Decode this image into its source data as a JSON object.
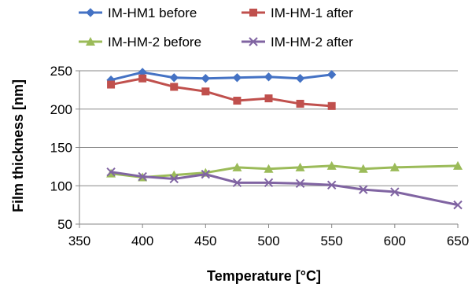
{
  "chart_data": {
    "type": "line",
    "title": "",
    "xlabel": "Temperature [°C]",
    "ylabel": "Film thickness [nm]",
    "xlim": [
      350,
      650
    ],
    "ylim": [
      50,
      250
    ],
    "xticks": [
      350,
      400,
      450,
      500,
      550,
      600,
      650
    ],
    "yticks": [
      50,
      100,
      150,
      200,
      250
    ],
    "grid": "horizontal",
    "legend_position": "top",
    "series": [
      {
        "name": "IM-HM1 before",
        "color": "#4472C4",
        "marker": "diamond",
        "x": [
          375,
          400,
          425,
          450,
          475,
          500,
          525,
          550
        ],
        "y": [
          238,
          248,
          241,
          240,
          241,
          242,
          240,
          245
        ]
      },
      {
        "name": "IM-HM-1 after",
        "color": "#C0504D",
        "marker": "square",
        "x": [
          375,
          400,
          425,
          450,
          475,
          500,
          525,
          550
        ],
        "y": [
          232,
          240,
          229,
          223,
          211,
          214,
          207,
          204
        ]
      },
      {
        "name": "IM-HM-2 before",
        "color": "#9BBB59",
        "marker": "triangle",
        "x": [
          375,
          400,
          425,
          450,
          475,
          500,
          525,
          550,
          575,
          600,
          650
        ],
        "y": [
          116,
          111,
          114,
          117,
          124,
          122,
          124,
          126,
          122,
          124,
          126
        ]
      },
      {
        "name": "IM-HM-2 after",
        "color": "#8064A2",
        "marker": "x",
        "x": [
          375,
          400,
          425,
          450,
          475,
          500,
          525,
          550,
          575,
          600,
          650
        ],
        "y": [
          118,
          112,
          109,
          115,
          104,
          104,
          103,
          101,
          95,
          92,
          75
        ]
      }
    ]
  }
}
